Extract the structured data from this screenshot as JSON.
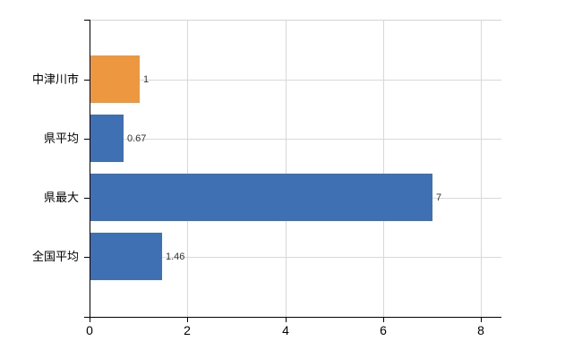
{
  "chart": {
    "background_color": "#ffffff",
    "axis_color": "#000000",
    "grid_color": "#d8d8d8",
    "category_label_color": "#000000",
    "value_label_color": "#333333"
  },
  "chart_data": {
    "type": "bar",
    "orientation": "horizontal",
    "title": "",
    "categories": [
      "中津川市",
      "県平均",
      "県最大",
      "全国平均"
    ],
    "values": [
      1,
      0.67,
      7,
      1.46
    ],
    "value_labels": [
      "1",
      "0.67",
      "7",
      "1.46"
    ],
    "series_colors": [
      "#ed9740",
      "#4070b4",
      "#4070b4",
      "#4070b4"
    ],
    "x_tick_labels": [
      "0",
      "2",
      "4",
      "6",
      "8"
    ],
    "x_tick_values": [
      0,
      2,
      4,
      6,
      8
    ],
    "xlim": [
      0,
      8.42
    ],
    "grid": true,
    "legend": false
  }
}
